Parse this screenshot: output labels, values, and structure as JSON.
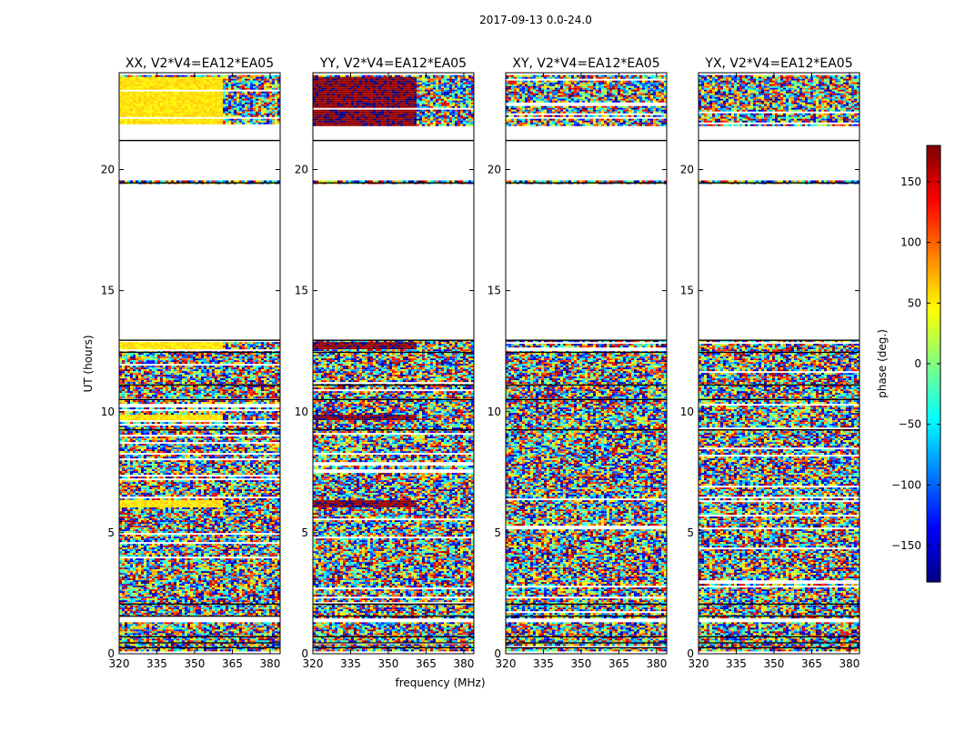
{
  "figure": {
    "suptitle": "2017-09-13 0.0-24.0",
    "xlabel": "frequency (MHz)",
    "ylabel": "UT (hours)",
    "colorbar_label": "phase (deg.)"
  },
  "chart_data": {
    "type": "heatmap",
    "xlim": [
      320,
      384
    ],
    "ylim": [
      0,
      24
    ],
    "x_ticks": [
      320,
      335,
      350,
      365,
      380
    ],
    "y_ticks": [
      0,
      5,
      10,
      15,
      20
    ],
    "x_tick_labels": [
      "320",
      "335",
      "350",
      "365",
      "380"
    ],
    "y_tick_labels": [
      "0",
      "5",
      "10",
      "15",
      "20"
    ],
    "colorbar": {
      "range": [
        -180,
        180
      ],
      "ticks": [
        150,
        100,
        50,
        0,
        -50,
        -100,
        -150
      ],
      "tick_labels": [
        "150",
        "100",
        "50",
        "0",
        "−50",
        "−100",
        "−150"
      ],
      "colormap": "jet"
    },
    "observed_hours": [
      [
        0.1,
        1.3
      ],
      [
        1.5,
        12.95
      ],
      [
        19.4,
        19.55
      ],
      [
        21.8,
        23.9
      ]
    ],
    "flagged_hours": [
      [
        1.3,
        1.5
      ],
      [
        12.95,
        19.4
      ],
      [
        19.55,
        21.2
      ]
    ],
    "panels": [
      {
        "title": "XX, V2*V4=EA12*EA05",
        "pol": "XX",
        "coherent_phase_deg": 55
      },
      {
        "title": "YY, V2*V4=EA12*EA05",
        "pol": "YY",
        "coherent_phase_deg": 175
      },
      {
        "title": "XY, V2*V4=EA12*EA05",
        "pol": "XY",
        "coherent_phase_deg": null
      },
      {
        "title": "YX, V2*V4=EA12*EA05",
        "pol": "YX",
        "coherent_phase_deg": null
      }
    ]
  }
}
